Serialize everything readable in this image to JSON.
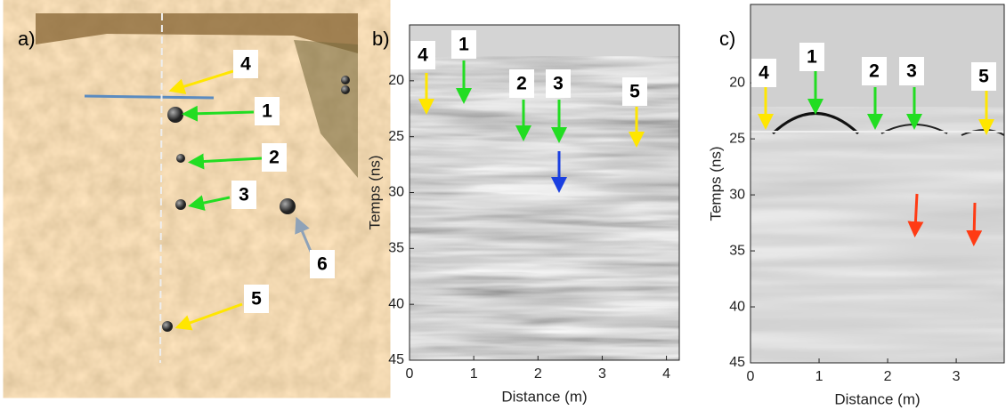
{
  "panels": [
    {
      "label": "a)",
      "markers": [
        {
          "text": "4",
          "color": "#ffe600"
        },
        {
          "text": "1",
          "color": "#22dd22"
        },
        {
          "text": "2",
          "color": "#22dd22"
        },
        {
          "text": "3",
          "color": "#22dd22"
        },
        {
          "text": "6",
          "color": "#8ea2b8"
        },
        {
          "text": "5",
          "color": "#ffe600"
        }
      ]
    },
    {
      "label": "b)",
      "xlabel": "Distance (m)",
      "ylabel": "Temps (ns)",
      "xlim": [
        0,
        4.2
      ],
      "ylim": [
        15,
        45
      ],
      "xticks": [
        0,
        1,
        2,
        3,
        4
      ],
      "yticks": [
        20,
        25,
        30,
        35,
        40,
        45
      ],
      "markers": [
        {
          "text": "4",
          "color": "#ffe600"
        },
        {
          "text": "1",
          "color": "#22dd22"
        },
        {
          "text": "2",
          "color": "#22dd22"
        },
        {
          "text": "3",
          "color": "#22dd22"
        },
        {
          "text": "5",
          "color": "#ffe600"
        }
      ],
      "extra_arrows": [
        "#1a3fe0"
      ]
    },
    {
      "label": "c)",
      "xlabel": "Distance (m)",
      "ylabel": "Temps (ns)",
      "xlim": [
        0,
        3.7
      ],
      "ylim": [
        13,
        45
      ],
      "xticks": [
        0,
        1,
        2,
        3
      ],
      "yticks": [
        20,
        25,
        30,
        35,
        40,
        45
      ],
      "markers": [
        {
          "text": "4",
          "color": "#ffe600"
        },
        {
          "text": "1",
          "color": "#22dd22"
        },
        {
          "text": "2",
          "color": "#22dd22"
        },
        {
          "text": "3",
          "color": "#22dd22"
        },
        {
          "text": "5",
          "color": "#ffe600"
        }
      ],
      "extra_arrows": [
        "#ff3b14",
        "#ff3b14"
      ]
    }
  ]
}
